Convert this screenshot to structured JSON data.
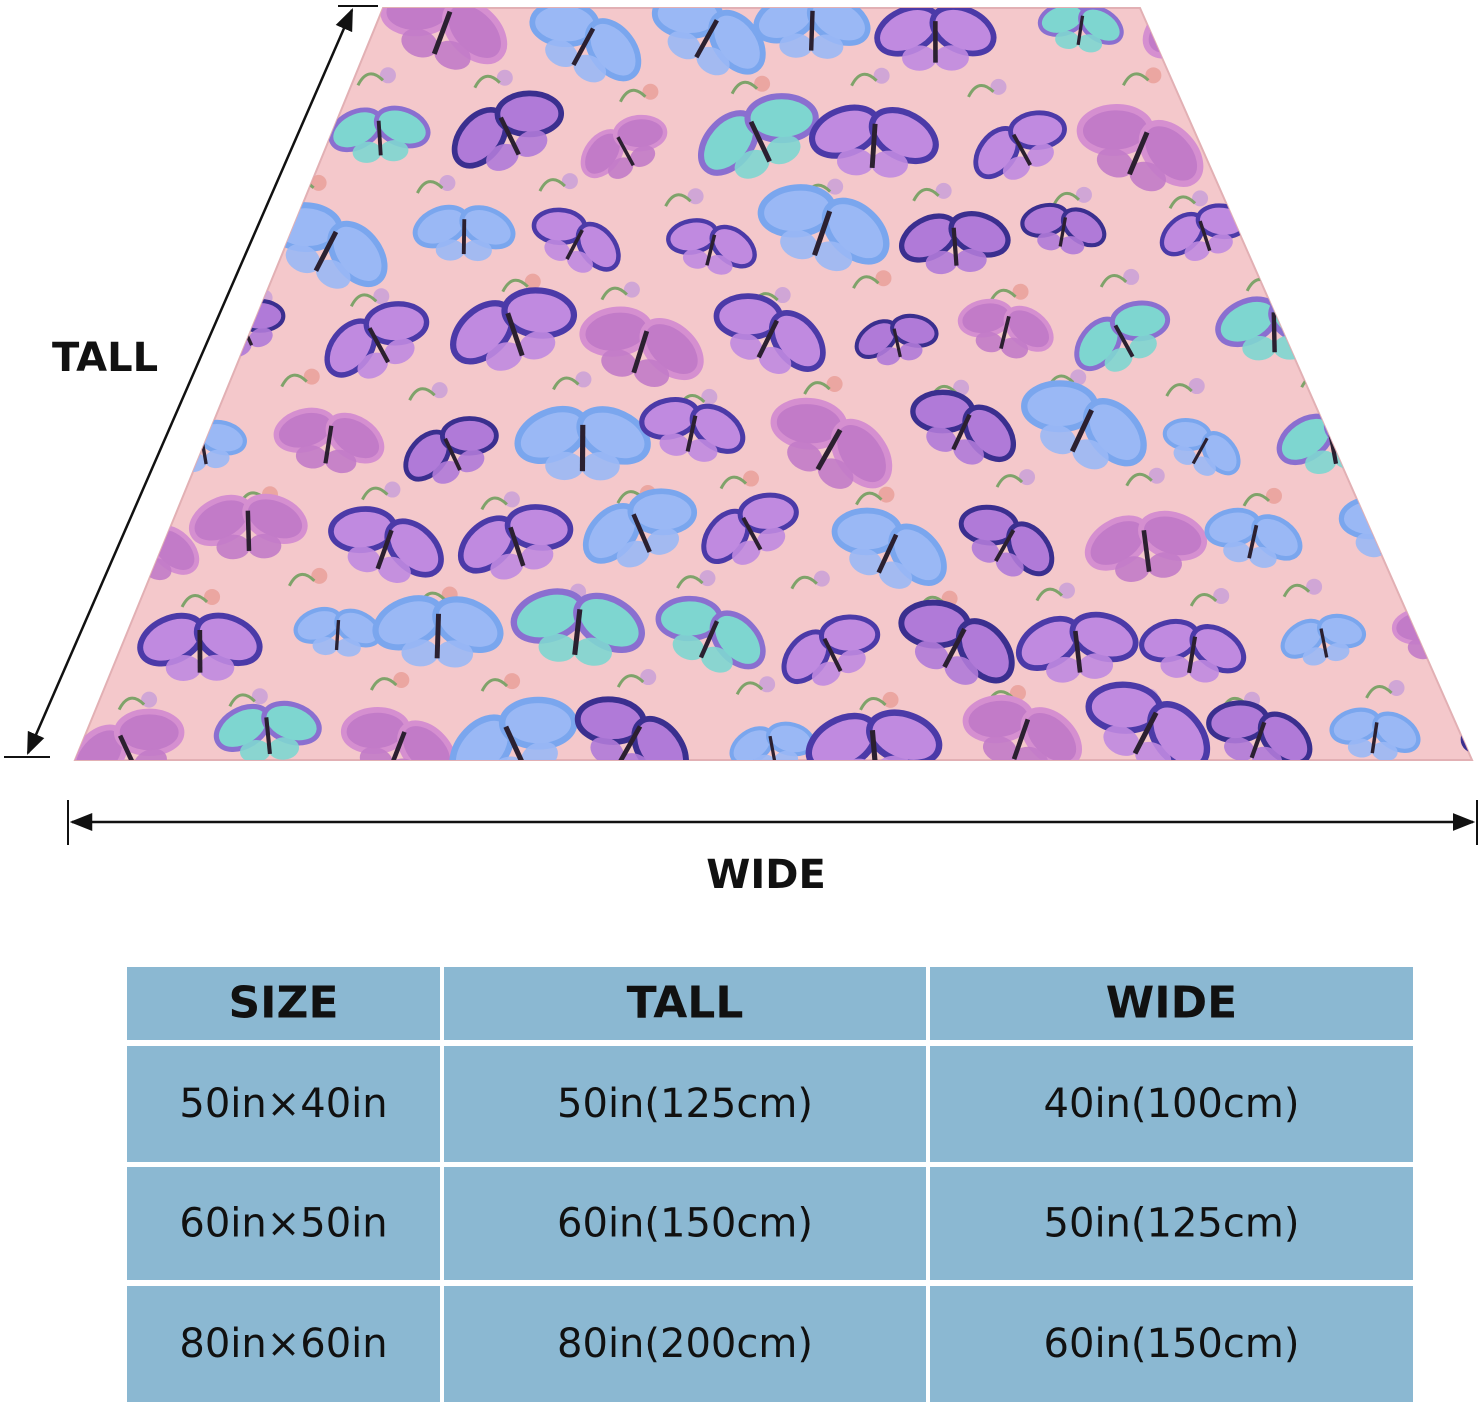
{
  "dimension_labels": {
    "tall": "TALL",
    "wide": "WIDE"
  },
  "table": {
    "header": [
      "SIZE",
      "TALL",
      "WIDE"
    ],
    "rows": [
      [
        "50in×40in",
        "50in(125cm)",
        "40in(100cm)"
      ],
      [
        "60in×50in",
        "60in(150cm)",
        "50in(125cm)"
      ],
      [
        "80in×60in",
        "80in(200cm)",
        "60in(150cm)"
      ]
    ]
  }
}
